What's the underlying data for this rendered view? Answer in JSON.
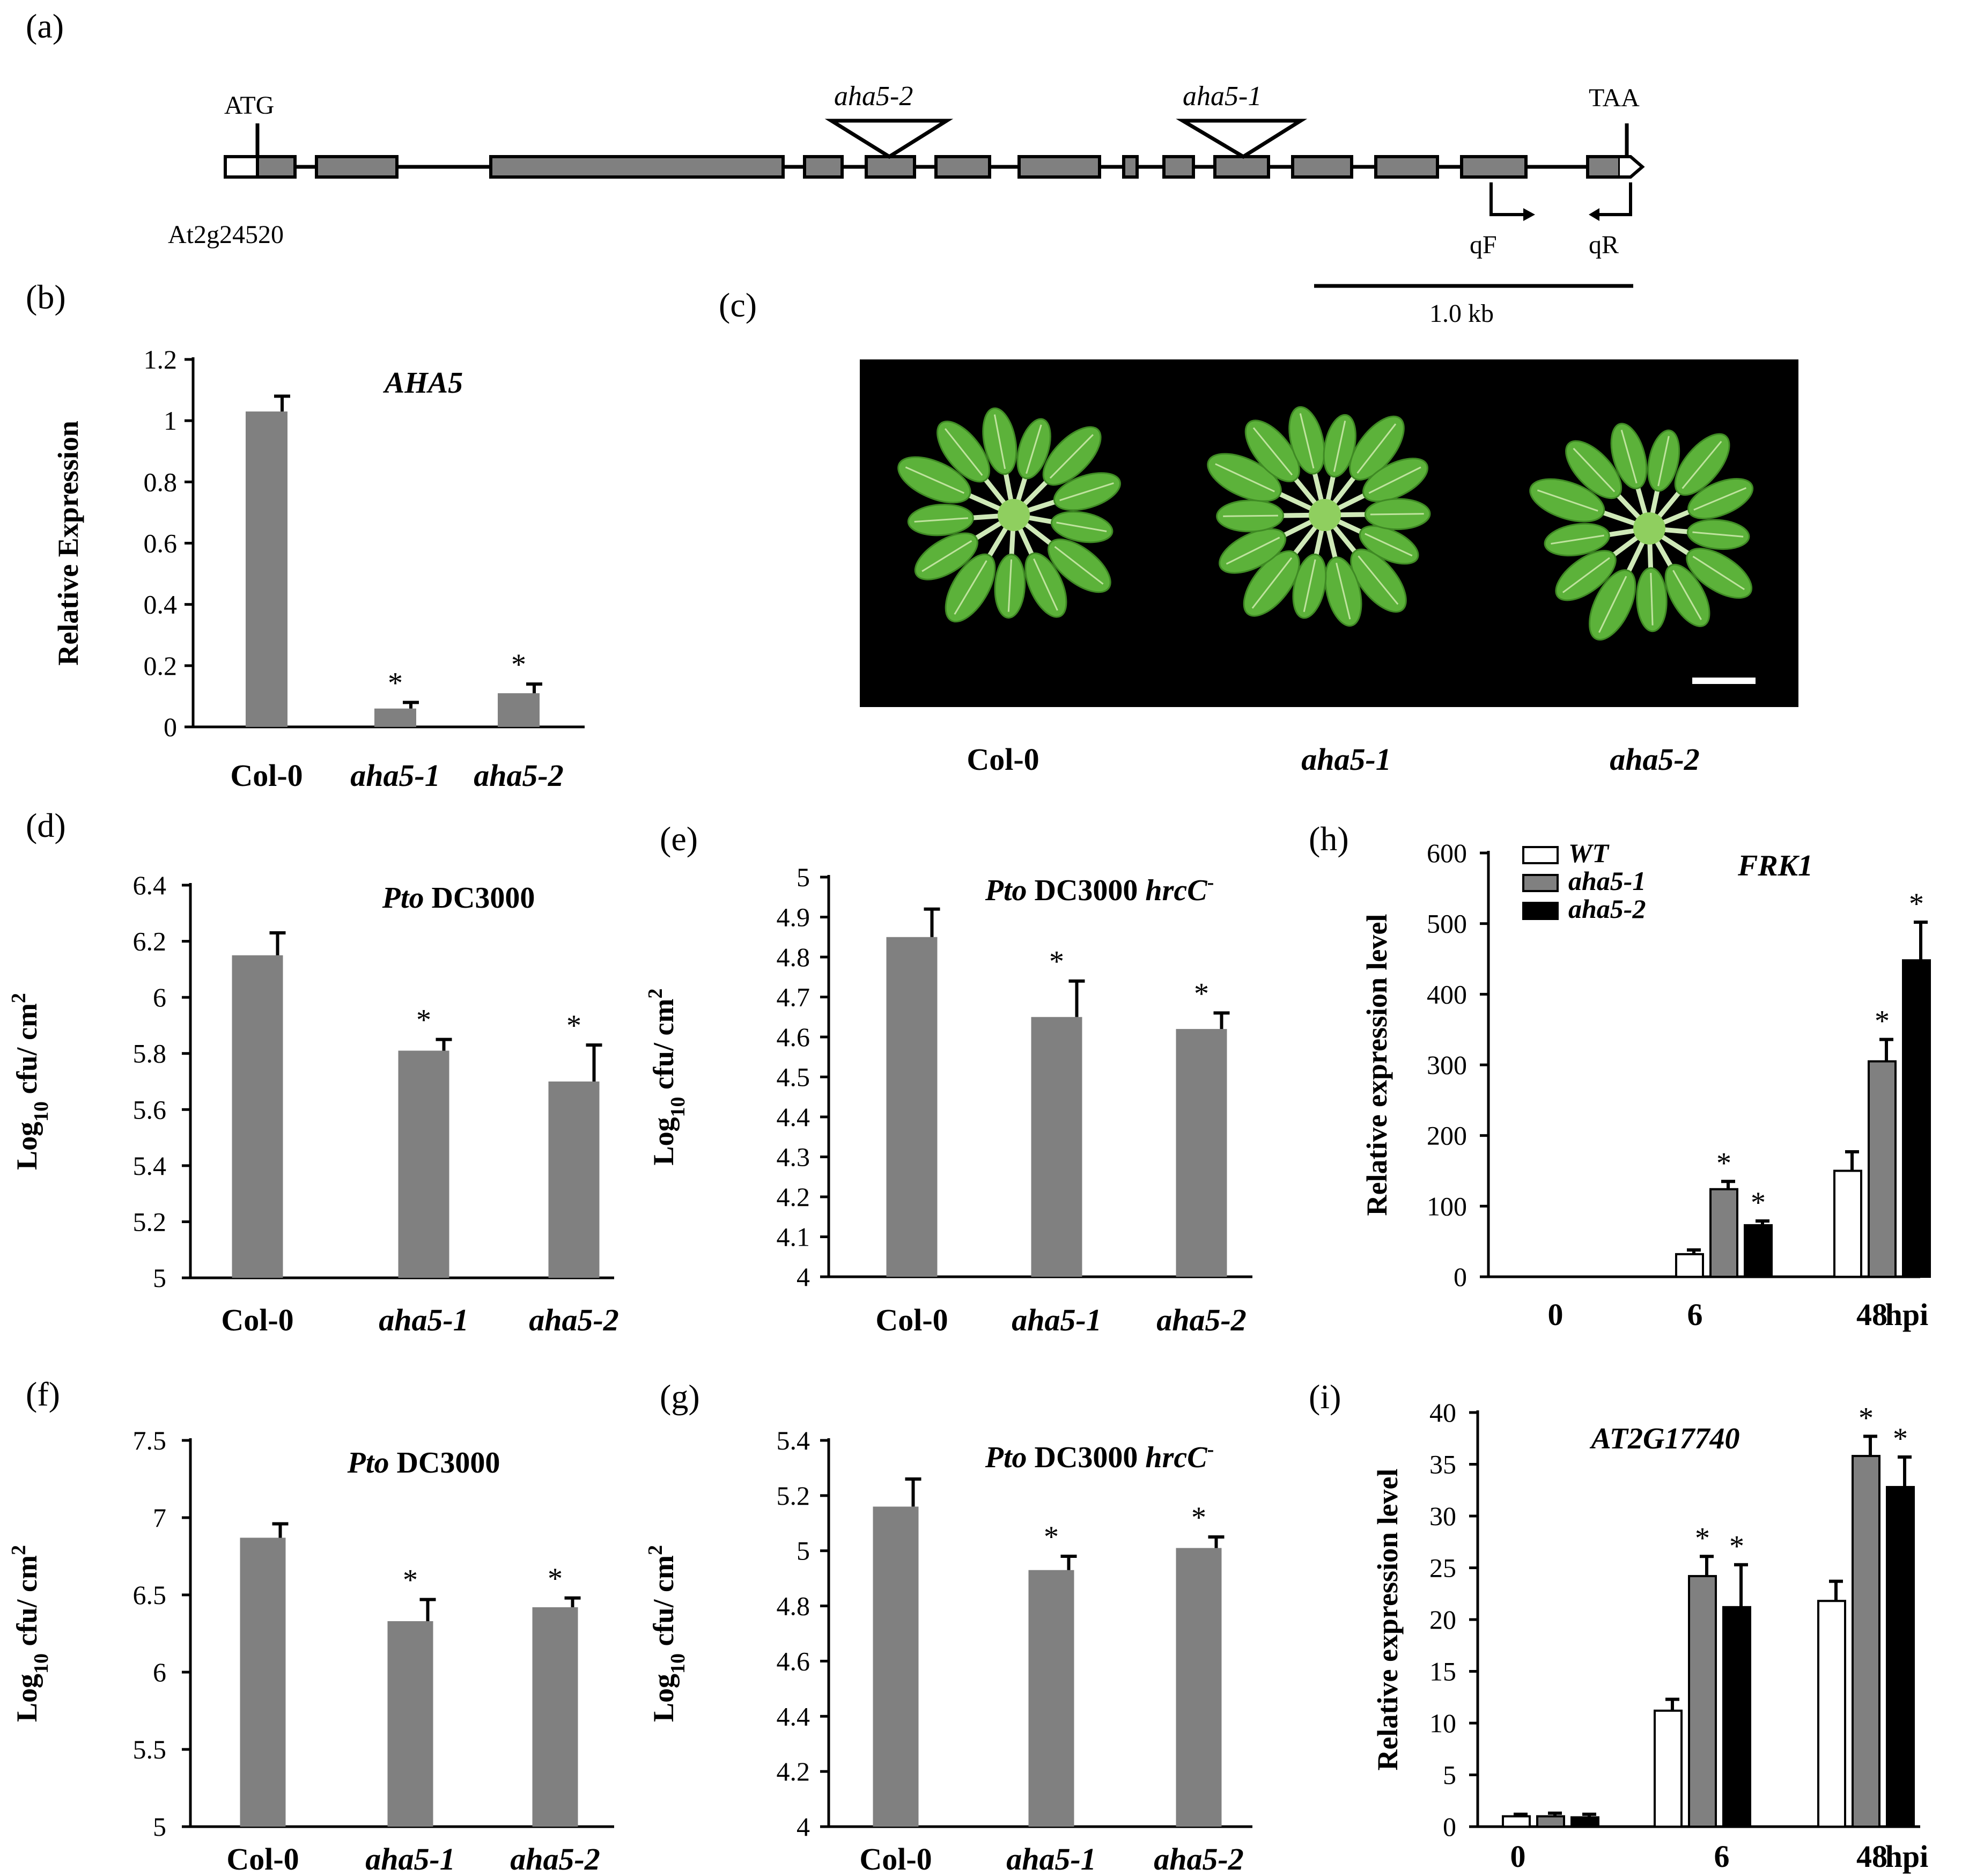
{
  "panels": {
    "a": "(a)",
    "b": "(b)",
    "c": "(c)",
    "d": "(d)",
    "e": "(e)",
    "f": "(f)",
    "g": "(g)",
    "h": "(h)",
    "i": "(i)"
  },
  "colors": {
    "bar_gray": "#808080",
    "bar_white": "#ffffff",
    "bar_black": "#000000",
    "photo_bg": "#000000",
    "leaf": "#5cb23a"
  },
  "gene_model": {
    "atg": "ATG",
    "taa": "TAA",
    "gene_id": "At2g24520",
    "insert_left": "aha5-2",
    "insert_right": "aha5-1",
    "primer_forward": "qF",
    "primer_reverse": "qR",
    "scale_bar": "1.0 kb"
  },
  "photo": {
    "labels": [
      "Col-0",
      "aha5-1",
      "aha5-2"
    ]
  },
  "chart_data": [
    {
      "panel": "b",
      "type": "bar",
      "title": "AHA5",
      "ylabel": "Relative Expression",
      "categories": [
        "Col-0",
        "aha5-1",
        "aha5-2"
      ],
      "values": [
        1.03,
        0.06,
        0.11
      ],
      "errors": [
        0.05,
        0.02,
        0.03
      ],
      "significant": [
        false,
        true,
        true
      ],
      "ylim": [
        0,
        1.2
      ],
      "yticks": [
        "0",
        "0.2",
        "0.4",
        "0.6",
        "0.8",
        "1",
        "1.2"
      ],
      "grid": false
    },
    {
      "panel": "d",
      "type": "bar",
      "title_italic": "Pto",
      "title_rest": " DC3000",
      "ylabel": "Log10 cfu/ cm2",
      "categories": [
        "Col-0",
        "aha5-1",
        "aha5-2"
      ],
      "values": [
        6.15,
        5.81,
        5.7
      ],
      "errors": [
        0.08,
        0.04,
        0.13
      ],
      "significant": [
        false,
        true,
        true
      ],
      "ylim": [
        5,
        6.4
      ],
      "yticks": [
        "5",
        "5.2",
        "5.4",
        "5.6",
        "5.8",
        "6",
        "6.2",
        "6.4"
      ],
      "grid": false
    },
    {
      "panel": "e",
      "type": "bar",
      "title_italic": "Pto",
      "title_rest": " DC3000 ",
      "title_tail": "hrcC",
      "title_sup": "-",
      "ylabel": "Log10 cfu/ cm2",
      "categories": [
        "Col-0",
        "aha5-1",
        "aha5-2"
      ],
      "values": [
        4.85,
        4.65,
        4.62
      ],
      "errors": [
        0.07,
        0.09,
        0.04
      ],
      "significant": [
        false,
        true,
        true
      ],
      "ylim": [
        4,
        5
      ],
      "yticks": [
        "4",
        "4.1",
        "4.2",
        "4.3",
        "4.4",
        "4.5",
        "4.6",
        "4.7",
        "4.8",
        "4.9",
        "5"
      ],
      "grid": false
    },
    {
      "panel": "f",
      "type": "bar",
      "title_italic": "Pto",
      "title_rest": " DC3000",
      "ylabel": "Log10 cfu/ cm2",
      "categories": [
        "Col-0",
        "aha5-1",
        "aha5-2"
      ],
      "values": [
        6.87,
        6.33,
        6.42
      ],
      "errors": [
        0.09,
        0.14,
        0.06
      ],
      "significant": [
        false,
        true,
        true
      ],
      "ylim": [
        5,
        7.5
      ],
      "yticks": [
        "5",
        "5.5",
        "6",
        "6.5",
        "7",
        "7.5"
      ],
      "grid": false
    },
    {
      "panel": "g",
      "type": "bar",
      "title_italic": "Pto",
      "title_rest": " DC3000 ",
      "title_tail": "hrcC",
      "title_sup": "-",
      "ylabel": "Log10 cfu/ cm2",
      "categories": [
        "Col-0",
        "aha5-1",
        "aha5-2"
      ],
      "values": [
        5.16,
        4.93,
        5.01
      ],
      "errors": [
        0.1,
        0.05,
        0.04
      ],
      "significant": [
        false,
        true,
        true
      ],
      "ylim": [
        4,
        5.4
      ],
      "yticks": [
        "4",
        "4.2",
        "4.4",
        "4.6",
        "4.8",
        "5",
        "5.2",
        "5.4"
      ],
      "grid": false
    },
    {
      "panel": "h",
      "type": "bar",
      "title": "FRK1",
      "ylabel": "Relative expression level",
      "categories": [
        "0",
        "6",
        "48"
      ],
      "xunit": "hpi",
      "series": [
        {
          "name": "WT",
          "values": [
            0,
            32,
            150
          ],
          "errors": [
            0,
            6,
            27
          ],
          "significant": [
            false,
            false,
            false
          ]
        },
        {
          "name": "aha5-1",
          "values": [
            0,
            124,
            305
          ],
          "errors": [
            0,
            11,
            31
          ],
          "significant": [
            false,
            true,
            true
          ]
        },
        {
          "name": "aha5-2",
          "values": [
            0,
            73,
            448
          ],
          "errors": [
            0,
            6,
            54
          ],
          "significant": [
            false,
            true,
            true
          ]
        }
      ],
      "ylim": [
        0,
        600
      ],
      "yticks": [
        "0",
        "100",
        "200",
        "300",
        "400",
        "500",
        "600"
      ],
      "legend": "top-left",
      "grid": false
    },
    {
      "panel": "i",
      "type": "bar",
      "title": "AT2G17740",
      "ylabel": "Relative expression level",
      "categories": [
        "0",
        "6",
        "48"
      ],
      "xunit": "hpi",
      "series": [
        {
          "name": "WT",
          "values": [
            1,
            11.2,
            21.8
          ],
          "errors": [
            0.2,
            1.1,
            1.9
          ],
          "significant": [
            false,
            false,
            false
          ]
        },
        {
          "name": "aha5-1",
          "values": [
            1,
            24.2,
            35.8
          ],
          "errors": [
            0.3,
            1.9,
            1.9
          ],
          "significant": [
            false,
            true,
            true
          ]
        },
        {
          "name": "aha5-2",
          "values": [
            0.9,
            21.2,
            32.8
          ],
          "errors": [
            0.3,
            4.1,
            2.9
          ],
          "significant": [
            false,
            true,
            true
          ]
        }
      ],
      "ylim": [
        0,
        40
      ],
      "yticks": [
        "0",
        "5",
        "10",
        "15",
        "20",
        "25",
        "30",
        "35",
        "40"
      ],
      "grid": false
    }
  ],
  "labels": {
    "star": "*",
    "log_base": "Log",
    "log_sub": "10",
    "cfu_unit": " cfu/ cm",
    "cfu_sup": "2"
  }
}
